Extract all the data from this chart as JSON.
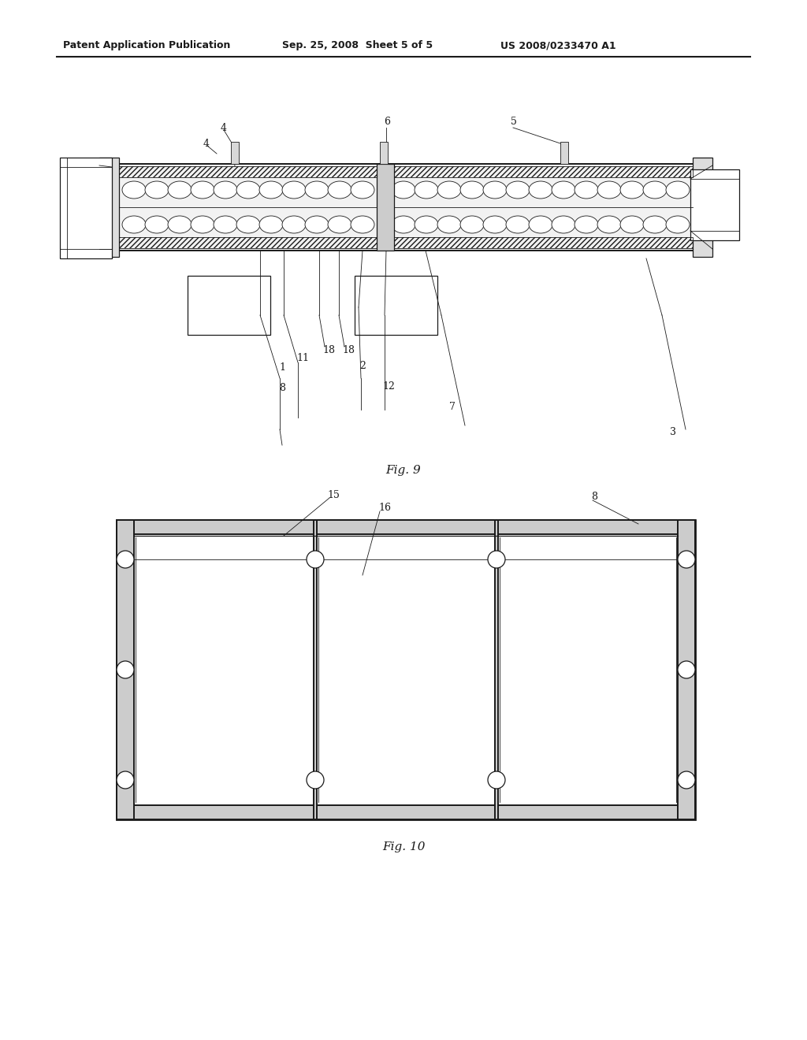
{
  "bg_color": "#ffffff",
  "header_text": "Patent Application Publication",
  "header_date": "Sep. 25, 2008  Sheet 5 of 5",
  "header_patent": "US 2008/0233470 A1",
  "fig9_label": "Fig. 9",
  "fig10_label": "Fig. 10",
  "line_color": "#1a1a1a"
}
